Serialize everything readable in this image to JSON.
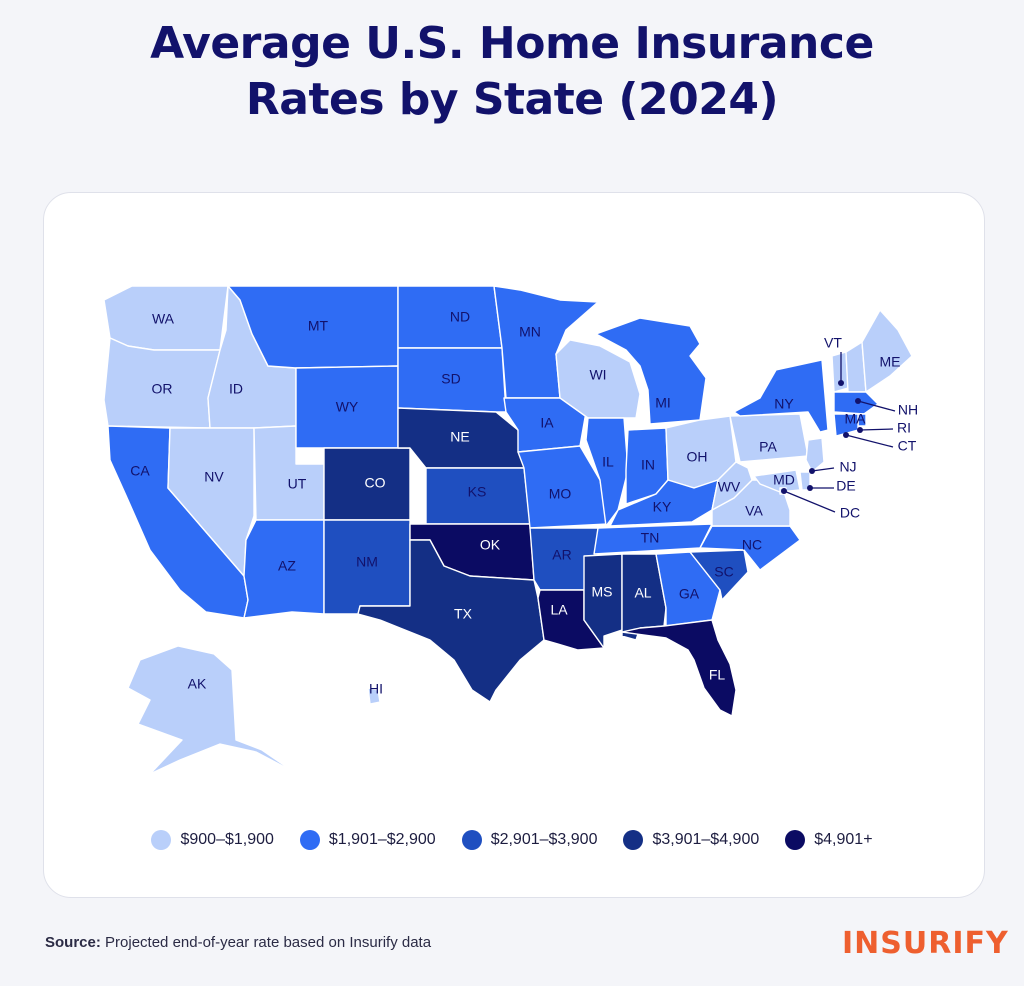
{
  "title": {
    "line1": "Average U.S. Home Insurance",
    "line2": "Rates by State (2024)"
  },
  "colors": {
    "c1": "#b9cffa",
    "c2": "#2f6cf4",
    "c3": "#1f4fc0",
    "c4": "#142f85",
    "c5": "#0b0b63",
    "text_dark": "#12126b",
    "brand": "#ee5f2f"
  },
  "legend": [
    {
      "label": "$900–$1,900",
      "color": "#b9cffa"
    },
    {
      "label": "$1,901–$2,900",
      "color": "#2f6cf4"
    },
    {
      "label": "$2,901–$3,900",
      "color": "#1f4fc0"
    },
    {
      "label": "$3,901–$4,900",
      "color": "#142f85"
    },
    {
      "label": "$4,901+",
      "color": "#0b0b63"
    }
  ],
  "states": [
    {
      "abbr": "WA",
      "tier": 1
    },
    {
      "abbr": "OR",
      "tier": 1
    },
    {
      "abbr": "CA",
      "tier": 2
    },
    {
      "abbr": "ID",
      "tier": 1
    },
    {
      "abbr": "NV",
      "tier": 1
    },
    {
      "abbr": "UT",
      "tier": 1
    },
    {
      "abbr": "AZ",
      "tier": 2
    },
    {
      "abbr": "MT",
      "tier": 2
    },
    {
      "abbr": "WY",
      "tier": 2
    },
    {
      "abbr": "CO",
      "tier": 4
    },
    {
      "abbr": "NM",
      "tier": 3
    },
    {
      "abbr": "ND",
      "tier": 2
    },
    {
      "abbr": "SD",
      "tier": 2
    },
    {
      "abbr": "NE",
      "tier": 4
    },
    {
      "abbr": "KS",
      "tier": 3
    },
    {
      "abbr": "OK",
      "tier": 5
    },
    {
      "abbr": "TX",
      "tier": 4
    },
    {
      "abbr": "MN",
      "tier": 2
    },
    {
      "abbr": "IA",
      "tier": 2
    },
    {
      "abbr": "MO",
      "tier": 2
    },
    {
      "abbr": "AR",
      "tier": 3
    },
    {
      "abbr": "LA",
      "tier": 5
    },
    {
      "abbr": "WI",
      "tier": 1
    },
    {
      "abbr": "IL",
      "tier": 2
    },
    {
      "abbr": "MI",
      "tier": 2
    },
    {
      "abbr": "IN",
      "tier": 2
    },
    {
      "abbr": "OH",
      "tier": 1
    },
    {
      "abbr": "KY",
      "tier": 2
    },
    {
      "abbr": "TN",
      "tier": 2
    },
    {
      "abbr": "MS",
      "tier": 4
    },
    {
      "abbr": "AL",
      "tier": 4
    },
    {
      "abbr": "GA",
      "tier": 2
    },
    {
      "abbr": "FL",
      "tier": 5
    },
    {
      "abbr": "SC",
      "tier": 3
    },
    {
      "abbr": "NC",
      "tier": 2
    },
    {
      "abbr": "VA",
      "tier": 1
    },
    {
      "abbr": "WV",
      "tier": 1
    },
    {
      "abbr": "PA",
      "tier": 1
    },
    {
      "abbr": "NY",
      "tier": 2
    },
    {
      "abbr": "VT",
      "tier": 1
    },
    {
      "abbr": "NH",
      "tier": 1
    },
    {
      "abbr": "ME",
      "tier": 1
    },
    {
      "abbr": "MA",
      "tier": 2
    },
    {
      "abbr": "RI",
      "tier": 2
    },
    {
      "abbr": "CT",
      "tier": 2
    },
    {
      "abbr": "NJ",
      "tier": 1
    },
    {
      "abbr": "DE",
      "tier": 1
    },
    {
      "abbr": "MD",
      "tier": 1
    },
    {
      "abbr": "DC",
      "tier": 1
    },
    {
      "abbr": "AK",
      "tier": 1
    },
    {
      "abbr": "HI",
      "tier": 1
    }
  ],
  "source": {
    "label": "Source:",
    "text": "Projected end-of-year rate based on Insurify data"
  },
  "logo": "INSURIFY"
}
